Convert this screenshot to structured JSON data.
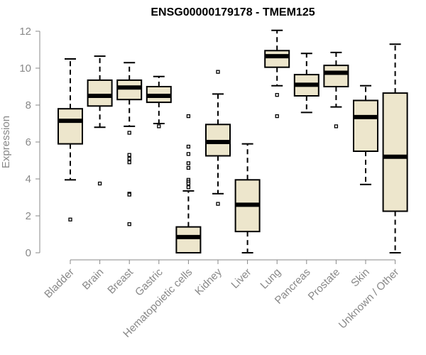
{
  "chart_data": {
    "type": "boxplot",
    "title": "ENSG00000179178 - TMEM125",
    "xlabel": "",
    "ylabel": "Expression",
    "ylim": [
      0,
      12
    ],
    "yticks": [
      0,
      2,
      4,
      6,
      8,
      10,
      12
    ],
    "box_color": "#ede6cc",
    "categories": [
      "Bladder",
      "Brain",
      "Breast",
      "Gastric",
      "Hematopoietic cells",
      "Kidney",
      "Liver",
      "Lung",
      "Pancreas",
      "Prostate",
      "Skin",
      "Unknown / Other"
    ],
    "boxes": [
      {
        "whisker_low": 3.95,
        "q1": 5.9,
        "median": 7.15,
        "q3": 7.8,
        "whisker_high": 10.5,
        "outliers": [
          1.8
        ]
      },
      {
        "whisker_low": 6.8,
        "q1": 7.95,
        "median": 8.5,
        "q3": 9.35,
        "whisker_high": 10.65,
        "outliers": [
          3.75
        ]
      },
      {
        "whisker_low": 6.85,
        "q1": 8.3,
        "median": 8.95,
        "q3": 9.35,
        "whisker_high": 10.3,
        "outliers": [
          6.5,
          5.3,
          5.1,
          4.9,
          3.2,
          3.15,
          1.55
        ]
      },
      {
        "whisker_low": 7.0,
        "q1": 8.15,
        "median": 8.5,
        "q3": 9.0,
        "whisker_high": 9.55,
        "outliers": [
          6.85
        ]
      },
      {
        "whisker_low": 0.0,
        "q1": 0.0,
        "median": 0.85,
        "q3": 1.4,
        "whisker_high": 3.35,
        "outliers": [
          7.4,
          5.75,
          5.35,
          4.85,
          4.6,
          3.95,
          3.85,
          3.75,
          3.55
        ]
      },
      {
        "whisker_low": 3.2,
        "q1": 5.25,
        "median": 6.0,
        "q3": 6.95,
        "whisker_high": 8.6,
        "outliers": [
          9.8,
          2.65
        ]
      },
      {
        "whisker_low": 0.0,
        "q1": 1.15,
        "median": 2.6,
        "q3": 3.95,
        "whisker_high": 5.9,
        "outliers": []
      },
      {
        "whisker_low": 9.05,
        "q1": 10.05,
        "median": 10.65,
        "q3": 10.95,
        "whisker_high": 12.05,
        "outliers": [
          8.55,
          7.4
        ]
      },
      {
        "whisker_low": 7.6,
        "q1": 8.5,
        "median": 9.1,
        "q3": 9.65,
        "whisker_high": 10.8,
        "outliers": []
      },
      {
        "whisker_low": 7.9,
        "q1": 9.0,
        "median": 9.75,
        "q3": 10.15,
        "whisker_high": 10.85,
        "outliers": [
          6.85
        ]
      },
      {
        "whisker_low": 3.7,
        "q1": 5.5,
        "median": 7.35,
        "q3": 8.25,
        "whisker_high": 9.05,
        "outliers": []
      },
      {
        "whisker_low": 0.0,
        "q1": 2.25,
        "median": 5.2,
        "q3": 8.65,
        "whisker_high": 11.3,
        "outliers": []
      }
    ]
  }
}
